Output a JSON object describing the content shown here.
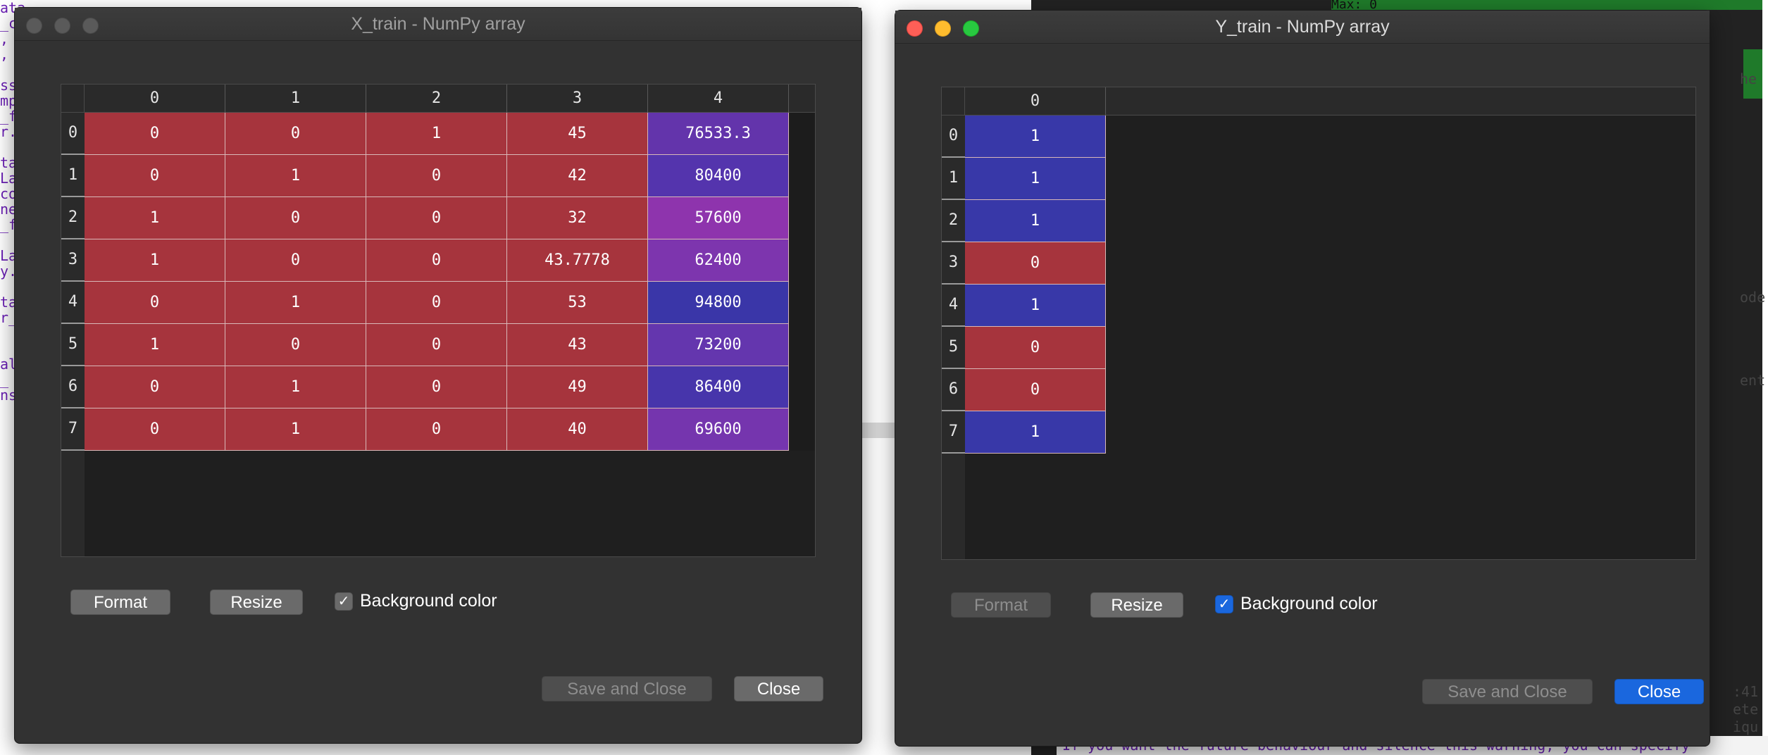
{
  "background": {
    "editor_lines": [
      "ata",
      "_c",
      ",",
      ",",
      "",
      "ss.",
      "mpu",
      "_f.",
      "r.",
      "",
      "ta",
      "La",
      "co",
      "ne",
      "_f.",
      "",
      "La",
      "y.",
      "",
      "ta",
      "r_",
      "",
      "",
      "al",
      "_",
      "ns"
    ],
    "console_top": "Max: 0",
    "console_warning": "If you want the future behaviour and silence this warning, you can specify",
    "side_text": [
      ":41",
      "ete",
      "iqu",
      "he",
      "ode",
      "ent"
    ]
  },
  "windows": [
    {
      "title": "X_train - NumPy array",
      "active": false,
      "columns": [
        "0",
        "1",
        "2",
        "3",
        "4"
      ],
      "rows": [
        "0",
        "1",
        "2",
        "3",
        "4",
        "5",
        "6",
        "7"
      ],
      "cells": [
        [
          "0",
          "0",
          "1",
          "45",
          "76533.3"
        ],
        [
          "0",
          "1",
          "0",
          "42",
          "80400"
        ],
        [
          "1",
          "0",
          "0",
          "32",
          "57600"
        ],
        [
          "1",
          "0",
          "0",
          "43.7778",
          "62400"
        ],
        [
          "0",
          "1",
          "0",
          "53",
          "94800"
        ],
        [
          "1",
          "0",
          "0",
          "43",
          "73200"
        ],
        [
          "0",
          "1",
          "0",
          "49",
          "86400"
        ],
        [
          "0",
          "1",
          "0",
          "40",
          "69600"
        ]
      ],
      "cell_colors": [
        [
          "#a6343d",
          "#a6343d",
          "#a6343d",
          "#a6343d",
          "#6334ab"
        ],
        [
          "#a6343d",
          "#a6343d",
          "#a6343d",
          "#a6343d",
          "#5434ad"
        ],
        [
          "#a6343d",
          "#a6343d",
          "#a6343d",
          "#a6343d",
          "#8e34ad"
        ],
        [
          "#a6343d",
          "#a6343d",
          "#a6343d",
          "#a6343d",
          "#7d35ae"
        ],
        [
          "#a6343d",
          "#a6343d",
          "#a6343d",
          "#a6343d",
          "#3a36a8"
        ],
        [
          "#a6343d",
          "#a6343d",
          "#a6343d",
          "#a6343d",
          "#6436ae"
        ],
        [
          "#a6343d",
          "#a6343d",
          "#a6343d",
          "#a6343d",
          "#4735ab"
        ],
        [
          "#a6343d",
          "#a6343d",
          "#a6343d",
          "#a6343d",
          "#7535ae"
        ]
      ],
      "buttons": {
        "format": "Format",
        "resize": "Resize",
        "save_close": "Save and Close",
        "close": "Close"
      },
      "background_color_label": "Background color",
      "format_enabled": true
    },
    {
      "title": "Y_train - NumPy array",
      "active": true,
      "columns": [
        "0"
      ],
      "rows": [
        "0",
        "1",
        "2",
        "3",
        "4",
        "5",
        "6",
        "7"
      ],
      "cells": [
        [
          "1"
        ],
        [
          "1"
        ],
        [
          "1"
        ],
        [
          "0"
        ],
        [
          "1"
        ],
        [
          "0"
        ],
        [
          "0"
        ],
        [
          "1"
        ]
      ],
      "cell_colors": [
        [
          "#3838a8"
        ],
        [
          "#3838a8"
        ],
        [
          "#3838a8"
        ],
        [
          "#a6343d"
        ],
        [
          "#3838a8"
        ],
        [
          "#a6343d"
        ],
        [
          "#a6343d"
        ],
        [
          "#3838a8"
        ]
      ],
      "buttons": {
        "format": "Format",
        "resize": "Resize",
        "save_close": "Save and Close",
        "close": "Close"
      },
      "background_color_label": "Background color",
      "format_enabled": false
    }
  ]
}
